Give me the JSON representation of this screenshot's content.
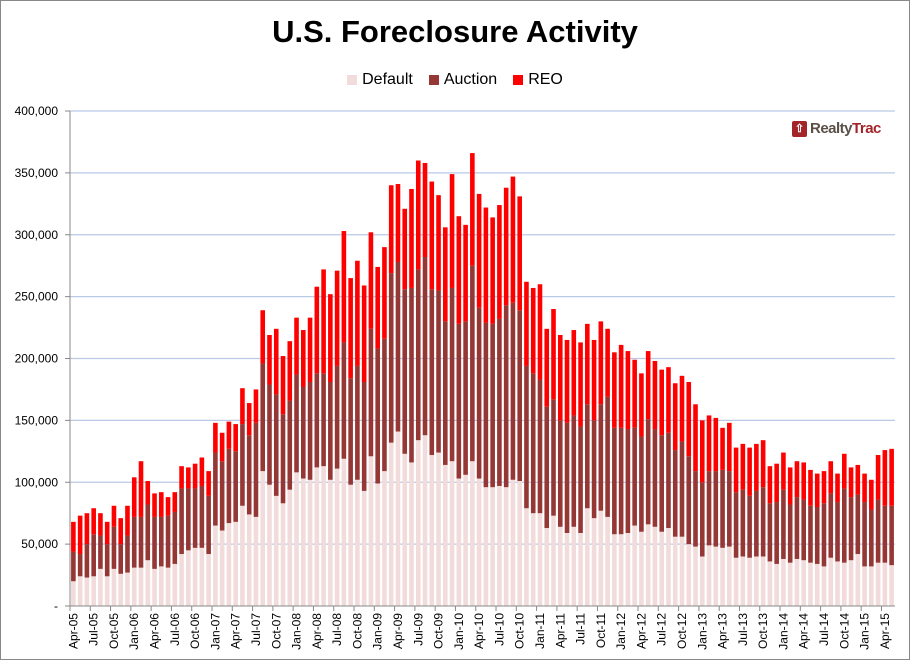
{
  "chart_data": {
    "type": "bar",
    "stacked": true,
    "title": "U.S. Foreclosure Activity",
    "xlabel": "",
    "ylabel": "",
    "ylim": [
      0,
      400000
    ],
    "y_ticks": [
      0,
      50000,
      100000,
      150000,
      200000,
      250000,
      300000,
      350000,
      400000
    ],
    "y_tick_labels": [
      "-",
      "50,000",
      "100,000",
      "150,000",
      "200,000",
      "250,000",
      "300,000",
      "350,000",
      "400,000"
    ],
    "grid": true,
    "legend_position": "top",
    "x_tick_every": 3,
    "categories": [
      "Apr-05",
      "May-05",
      "Jun-05",
      "Jul-05",
      "Aug-05",
      "Sep-05",
      "Oct-05",
      "Nov-05",
      "Dec-05",
      "Jan-06",
      "Feb-06",
      "Mar-06",
      "Apr-06",
      "May-06",
      "Jun-06",
      "Jul-06",
      "Aug-06",
      "Sep-06",
      "Oct-06",
      "Nov-06",
      "Dec-06",
      "Jan-07",
      "Feb-07",
      "Mar-07",
      "Apr-07",
      "May-07",
      "Jun-07",
      "Jul-07",
      "Aug-07",
      "Sep-07",
      "Oct-07",
      "Nov-07",
      "Dec-07",
      "Jan-08",
      "Feb-08",
      "Mar-08",
      "Apr-08",
      "May-08",
      "Jun-08",
      "Jul-08",
      "Aug-08",
      "Sep-08",
      "Oct-08",
      "Nov-08",
      "Dec-08",
      "Jan-09",
      "Feb-09",
      "Mar-09",
      "Apr-09",
      "May-09",
      "Jun-09",
      "Jul-09",
      "Aug-09",
      "Sep-09",
      "Oct-09",
      "Nov-09",
      "Dec-09",
      "Jan-10",
      "Feb-10",
      "Mar-10",
      "Apr-10",
      "May-10",
      "Jun-10",
      "Jul-10",
      "Aug-10",
      "Sep-10",
      "Oct-10",
      "Nov-10",
      "Dec-10",
      "Jan-11",
      "Feb-11",
      "Mar-11",
      "Apr-11",
      "May-11",
      "Jun-11",
      "Jul-11",
      "Aug-11",
      "Sep-11",
      "Oct-11",
      "Nov-11",
      "Dec-11",
      "Jan-12",
      "Feb-12",
      "Mar-12",
      "Apr-12",
      "May-12",
      "Jun-12",
      "Jul-12",
      "Aug-12",
      "Sep-12",
      "Oct-12",
      "Nov-12",
      "Dec-12",
      "Jan-13",
      "Feb-13",
      "Mar-13",
      "Apr-13",
      "May-13",
      "Jun-13",
      "Jul-13",
      "Aug-13",
      "Sep-13",
      "Oct-13",
      "Nov-13",
      "Dec-13",
      "Jan-14",
      "Feb-14",
      "Mar-14",
      "Apr-14",
      "May-14",
      "Jun-14",
      "Jul-14",
      "Aug-14",
      "Sep-14",
      "Oct-14",
      "Nov-14",
      "Dec-14",
      "Jan-15",
      "Feb-15",
      "Mar-15",
      "Apr-15",
      "May-15"
    ],
    "series": [
      {
        "name": "Default",
        "color": "#f2dcdb",
        "values": [
          20000,
          24000,
          23000,
          24000,
          30000,
          24000,
          30000,
          26000,
          27000,
          31000,
          31000,
          37000,
          30000,
          32000,
          31000,
          34000,
          42000,
          45000,
          47000,
          47000,
          42000,
          65000,
          61000,
          67000,
          68000,
          81000,
          74000,
          72000,
          109000,
          98000,
          89000,
          83000,
          94000,
          108000,
          103000,
          102000,
          112000,
          113000,
          102000,
          111000,
          119000,
          98000,
          102000,
          93000,
          121000,
          99000,
          109000,
          132000,
          141000,
          123000,
          116000,
          134000,
          138000,
          122000,
          124000,
          114000,
          117000,
          103000,
          106000,
          117000,
          103000,
          96000,
          96000,
          97000,
          96000,
          102000,
          101000,
          79000,
          75000,
          75000,
          63000,
          73000,
          64000,
          59000,
          64000,
          59000,
          79000,
          71000,
          77000,
          72000,
          58000,
          58000,
          59000,
          65000,
          60000,
          66000,
          64000,
          60000,
          63000,
          56000,
          56000,
          50000,
          48000,
          40000,
          49000,
          48000,
          47000,
          48000,
          39000,
          40000,
          39000,
          40000,
          40000,
          36000,
          34000,
          38000,
          35000,
          38000,
          37000,
          35000,
          34000,
          32000,
          39000,
          36000,
          35000,
          37000,
          42000,
          32000,
          32000,
          35000,
          35000,
          33000
        ]
      },
      {
        "name": "Auction",
        "color": "#953735",
        "values": [
          24000,
          18000,
          27000,
          34000,
          27000,
          26000,
          34000,
          24000,
          30000,
          41000,
          41000,
          45000,
          42000,
          40000,
          42000,
          42000,
          53000,
          50000,
          48000,
          50000,
          47000,
          59000,
          56000,
          60000,
          57000,
          66000,
          64000,
          76000,
          87000,
          81000,
          82000,
          72000,
          72000,
          79000,
          74000,
          79000,
          76000,
          75000,
          79000,
          83000,
          94000,
          86000,
          92000,
          88000,
          103000,
          109000,
          107000,
          137000,
          137000,
          133000,
          141000,
          138000,
          144000,
          134000,
          131000,
          116000,
          140000,
          125000,
          124000,
          158000,
          138000,
          133000,
          132000,
          135000,
          147000,
          143000,
          138000,
          115000,
          113000,
          108000,
          98000,
          94000,
          86000,
          89000,
          90000,
          86000,
          84000,
          79000,
          86000,
          97000,
          86000,
          86000,
          84000,
          79000,
          77000,
          85000,
          79000,
          78000,
          77000,
          70000,
          77000,
          71000,
          61000,
          60000,
          60000,
          61000,
          63000,
          61000,
          53000,
          54000,
          50000,
          53000,
          56000,
          47000,
          50000,
          56000,
          47000,
          50000,
          49000,
          46000,
          46000,
          51000,
          52000,
          48000,
          60000,
          51000,
          48000,
          52000,
          46000,
          51000,
          46000,
          48000
        ]
      },
      {
        "name": "REO",
        "color": "#ff0000",
        "values": [
          24000,
          31000,
          25000,
          21000,
          18000,
          18000,
          17000,
          21000,
          24000,
          32000,
          45000,
          19000,
          19000,
          20000,
          15000,
          16000,
          18000,
          17000,
          20000,
          23000,
          20000,
          24000,
          23000,
          22000,
          22000,
          29000,
          26000,
          27000,
          43000,
          40000,
          53000,
          47000,
          48000,
          46000,
          46000,
          52000,
          70000,
          84000,
          71000,
          77000,
          90000,
          81000,
          85000,
          78000,
          78000,
          66000,
          74000,
          71000,
          63000,
          65000,
          80000,
          88000,
          76000,
          87000,
          77000,
          76000,
          92000,
          87000,
          78000,
          91000,
          92000,
          93000,
          86000,
          92000,
          95000,
          102000,
          92000,
          68000,
          69000,
          77000,
          63000,
          73000,
          69000,
          67000,
          69000,
          68000,
          65000,
          65000,
          67000,
          55000,
          61000,
          67000,
          63000,
          55000,
          51000,
          55000,
          55000,
          53000,
          53000,
          54000,
          53000,
          60000,
          54000,
          50000,
          45000,
          43000,
          34000,
          39000,
          36000,
          37000,
          39000,
          38000,
          38000,
          30000,
          31000,
          30000,
          30000,
          29000,
          30000,
          29000,
          27000,
          26000,
          26000,
          23000,
          28000,
          24000,
          24000,
          23000,
          24000,
          36000,
          45000,
          46000
        ]
      }
    ]
  },
  "logo": {
    "part1": "Realty",
    "part2": "Trac"
  }
}
